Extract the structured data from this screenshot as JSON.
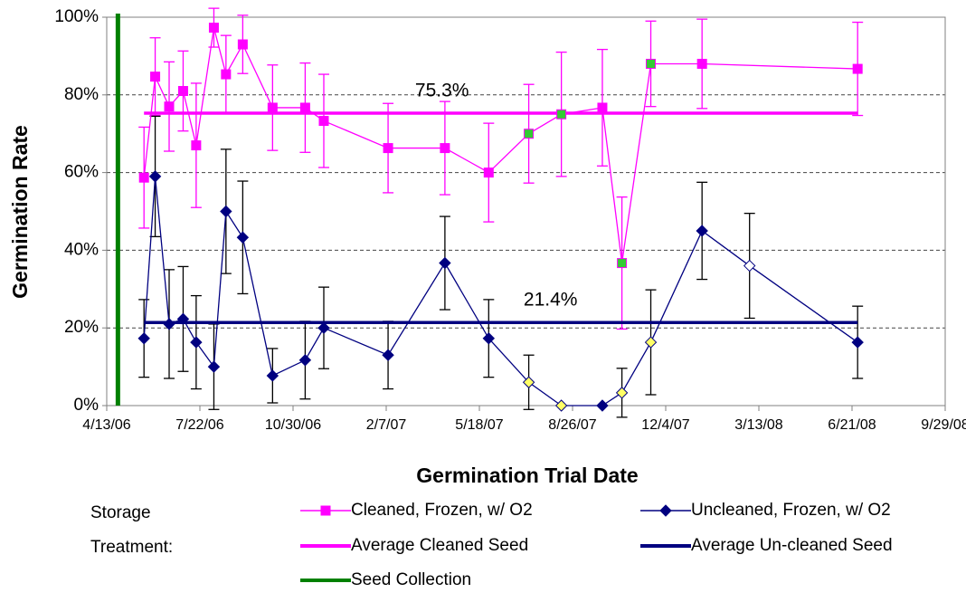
{
  "chart_data": {
    "type": "line",
    "x_label": "Germination Trial Date",
    "y_label": "Germination Rate",
    "legend_title": "Storage Treatment:",
    "xlim": [
      "4/13/06",
      "9/29/08"
    ],
    "xticks": [
      "4/13/06",
      "7/22/06",
      "10/30/06",
      "2/7/07",
      "5/18/07",
      "8/26/07",
      "12/4/07",
      "3/13/08",
      "6/21/08",
      "9/29/08"
    ],
    "ylim": [
      0,
      100
    ],
    "yticks": [
      {
        "value": 0,
        "label": "0%"
      },
      {
        "value": 20,
        "label": "20%"
      },
      {
        "value": 40,
        "label": "40%"
      },
      {
        "value": 60,
        "label": "60%"
      },
      {
        "value": 80,
        "label": "80%"
      },
      {
        "value": 100,
        "label": "100%"
      }
    ],
    "grid": true,
    "series": [
      {
        "name": "Cleaned, Frozen, w/ O2",
        "color": "#ff00ff",
        "marker": "square",
        "error_color": "#ff00ff",
        "x": [
          "5/23/06",
          "6/4/06",
          "6/19/06",
          "7/4/06",
          "7/18/06",
          "8/6/06",
          "8/19/06",
          "9/6/06",
          "10/8/06",
          "11/12/06",
          "12/2/06",
          "2/9/07",
          "4/11/07",
          "5/28/07",
          "7/10/07",
          "8/14/07",
          "9/27/07",
          "10/18/07",
          "11/18/07",
          "1/12/08",
          "6/27/08"
        ],
        "values": [
          58.7,
          84.7,
          77,
          81,
          67,
          97.3,
          85.3,
          93,
          76.7,
          76.7,
          73.3,
          66.3,
          66.3,
          60,
          70,
          75,
          76.7,
          36.7,
          88,
          88,
          86.7
        ],
        "errors": [
          13,
          10,
          11.5,
          10.3,
          16,
          5,
          10,
          7.5,
          11,
          11.5,
          12,
          11.5,
          12,
          12.7,
          12.7,
          16,
          15,
          17,
          11,
          11.5,
          12
        ],
        "marker_fills": [
          "#ff00ff",
          "#ff00ff",
          "#ff00ff",
          "#ff00ff",
          "#ff00ff",
          "#ff00ff",
          "#ff00ff",
          "#ff00ff",
          "#ff00ff",
          "#ff00ff",
          "#ff00ff",
          "#ff00ff",
          "#ff00ff",
          "#ff00ff",
          "#33cc33",
          "#33cc33",
          "#ff00ff",
          "#33cc33",
          "#33cc33",
          "#ff00ff",
          "#ff00ff"
        ]
      },
      {
        "name": "Uncleaned, Frozen, w/ O2",
        "color": "#000080",
        "marker": "diamond",
        "error_color": "#000000",
        "x": [
          "5/23/06",
          "6/4/06",
          "6/19/06",
          "7/4/06",
          "7/18/06",
          "8/6/06",
          "8/19/06",
          "9/6/06",
          "10/8/06",
          "11/12/06",
          "12/2/06",
          "2/9/07",
          "4/11/07",
          "5/28/07",
          "7/10/07",
          "8/14/07",
          "9/27/07",
          "10/18/07",
          "11/18/07",
          "1/12/08",
          "3/3/08",
          "6/27/08"
        ],
        "values": [
          17.3,
          59,
          21,
          22.3,
          16.3,
          10,
          50,
          43.3,
          7.7,
          11.7,
          20,
          13,
          36.7,
          17.3,
          6,
          0,
          0,
          3.3,
          16.3,
          45,
          36,
          16.3
        ],
        "errors": [
          10,
          15.5,
          14,
          13.5,
          12,
          11,
          16,
          14.5,
          7,
          10,
          10.5,
          8.7,
          12,
          10,
          7,
          0,
          0,
          6.3,
          13.5,
          12.5,
          13.5,
          9.3
        ],
        "marker_fills": [
          "#000080",
          "#000080",
          "#000080",
          "#000080",
          "#000080",
          "#000080",
          "#000080",
          "#000080",
          "#000080",
          "#000080",
          "#000080",
          "#000080",
          "#000080",
          "#000080",
          "#ffff66",
          "#ffff66",
          "#000080",
          "#ffff66",
          "#ffff66",
          "#000080",
          "#ffffff",
          "#000080"
        ]
      }
    ],
    "reference_lines": [
      {
        "name": "Average Cleaned Seed",
        "color": "#ff00ff",
        "value": 75.3,
        "value_label": "75.3%",
        "x": [
          "5/23/06",
          "6/27/08"
        ]
      },
      {
        "name": "Average Un-cleaned Seed",
        "color": "#000080",
        "value": 21.4,
        "value_label": "21.4%",
        "x": [
          "5/23/06",
          "6/27/08"
        ]
      }
    ],
    "vertical_line": {
      "name": "Seed Collection",
      "color": "#008000",
      "x": "4/25/06"
    }
  }
}
